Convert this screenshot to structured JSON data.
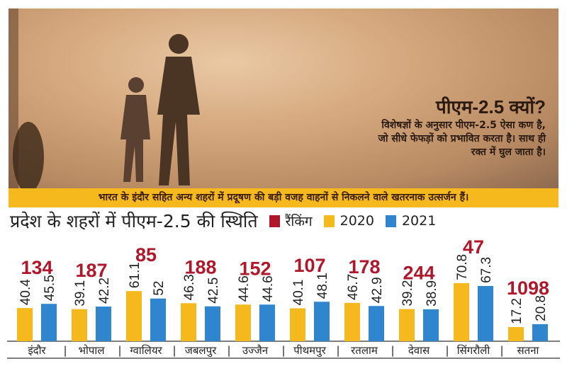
{
  "photo": {
    "why_title": "पीएम-2.5 क्यों?",
    "why_text": "विशेषज्ञों के अनुसार पीएम-2.5 ऐसा कण है, जो सीधे फेफड़ों को प्रभावित करता है। साथ ही रक्त में घुल जाता है।"
  },
  "banner": "भारत के इंदौर सहित अन्य शहरों में प्रदूषण की बड़ी वजह वाहनों से निकलने वाले खतरनाक उत्सर्जन हैं।",
  "colors": {
    "ranking": "#b0172a",
    "y2020": "#f6b91d",
    "y2021": "#2f86cf"
  },
  "chart_data": {
    "type": "bar",
    "title": "प्रदेश के शहरों में पीएम-2.5 की स्थिति",
    "legend": [
      "रैंकिंग",
      "2020",
      "2021"
    ],
    "categories": [
      "इंदौर",
      "भोपाल",
      "ग्वालियर",
      "जबलपुर",
      "उज्जैन",
      "पीथमपुर",
      "रतलाम",
      "देवास",
      "सिंगरौली",
      "सतना"
    ],
    "ranking": [
      134,
      187,
      85,
      188,
      152,
      107,
      178,
      244,
      47,
      1098
    ],
    "series": [
      {
        "name": "2020",
        "values": [
          40.4,
          39.1,
          61.1,
          46.3,
          44.6,
          40.1,
          46.7,
          39.2,
          70.8,
          17.2
        ]
      },
      {
        "name": "2021",
        "values": [
          45.5,
          42.2,
          52,
          42.5,
          44.6,
          48.1,
          42.9,
          38.9,
          67.3,
          20.8
        ]
      }
    ]
  }
}
